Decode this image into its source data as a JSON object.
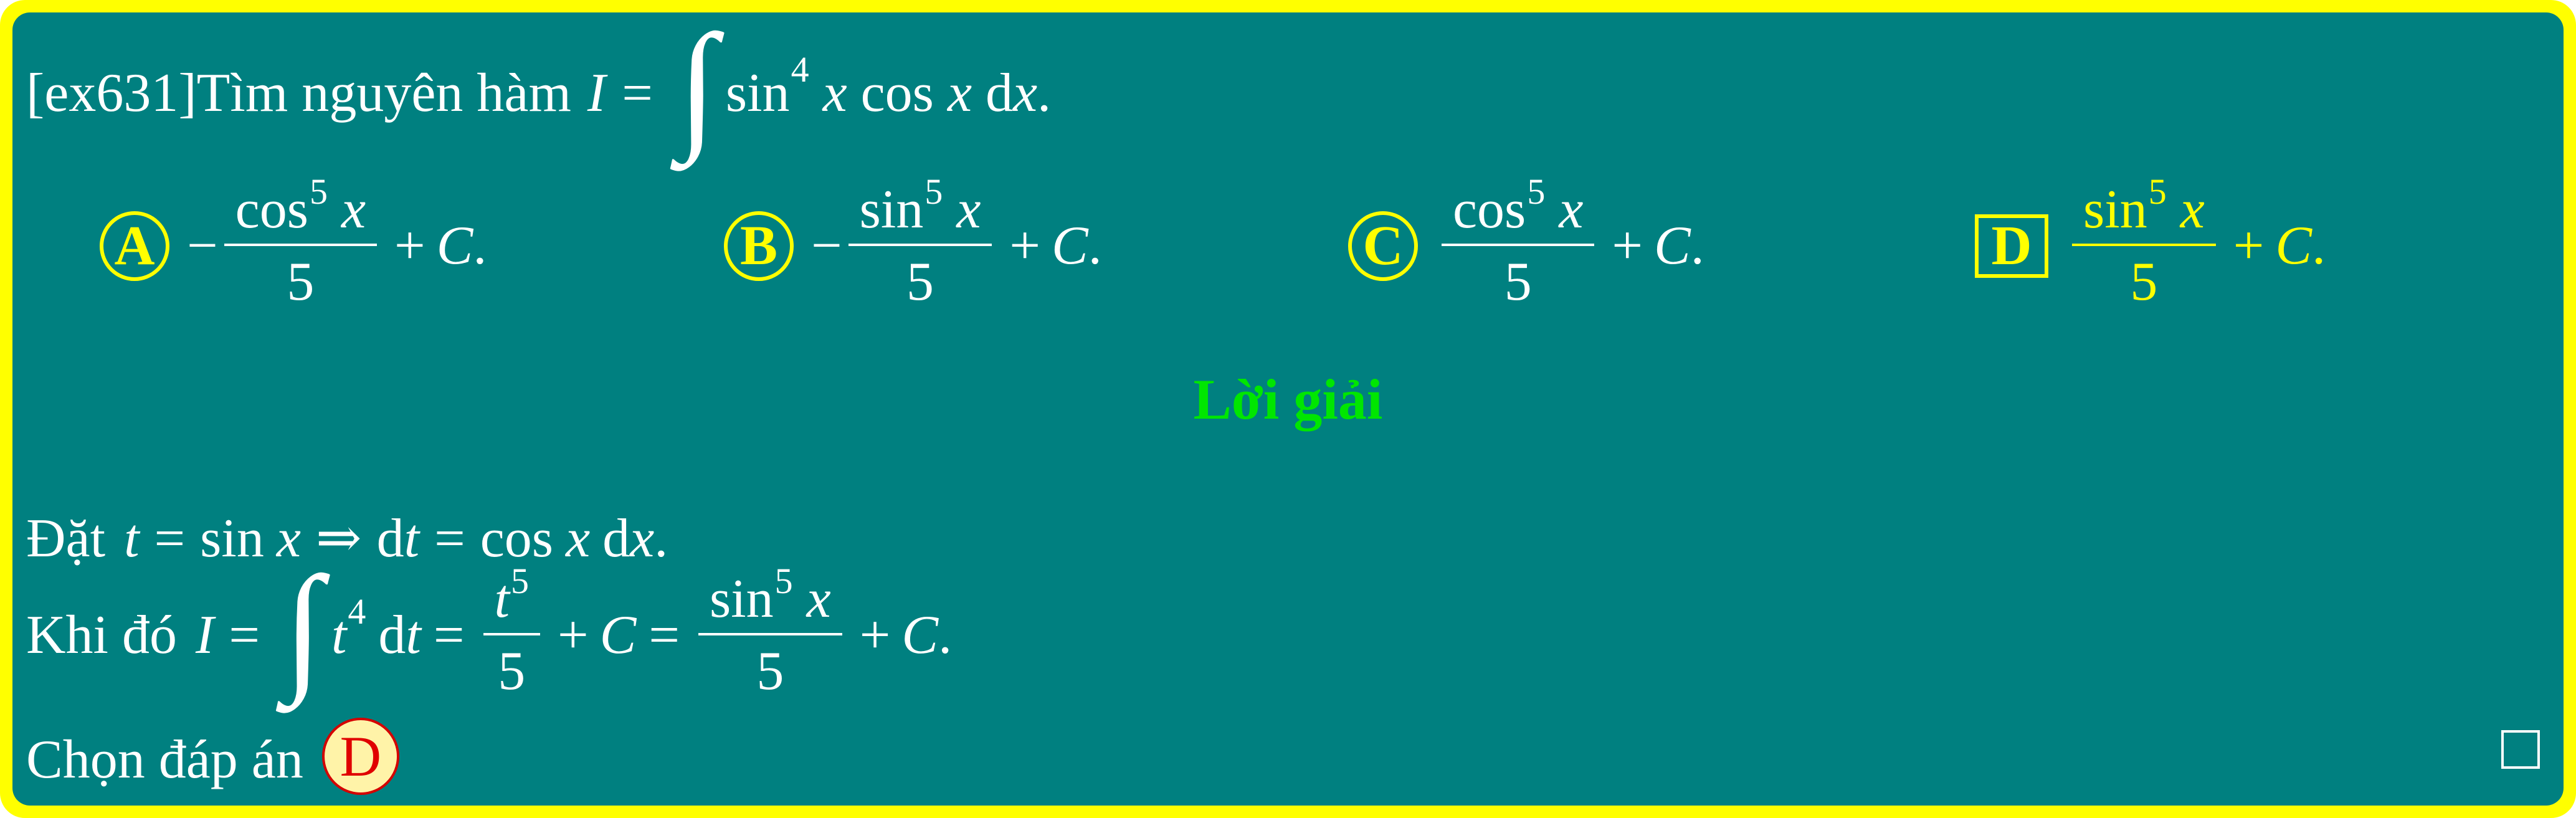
{
  "question": {
    "id_tag": "[ex631]",
    "prompt": "Tìm nguyên hàm",
    "var_I": "I",
    "equals": "=",
    "integral_sign": "∫",
    "func_sin": "sin",
    "power_4": "4",
    "var_x": "x",
    "func_cos": "cos",
    "d": "d",
    "end_period": "."
  },
  "options": [
    {
      "letter": "A",
      "sign": "−",
      "num_func": "cos",
      "num_pow": "5",
      "num_var": "x",
      "den": "5",
      "tail_plus": "+",
      "tail_C": "C",
      "tail_dot": ".",
      "marker": "circle",
      "selected": false
    },
    {
      "letter": "B",
      "sign": "−",
      "num_func": "sin",
      "num_pow": "5",
      "num_var": "x",
      "den": "5",
      "tail_plus": "+",
      "tail_C": "C",
      "tail_dot": ".",
      "marker": "circle",
      "selected": false
    },
    {
      "letter": "C",
      "sign": "",
      "num_func": "cos",
      "num_pow": "5",
      "num_var": "x",
      "den": "5",
      "tail_plus": "+",
      "tail_C": "C",
      "tail_dot": ".",
      "marker": "circle",
      "selected": false
    },
    {
      "letter": "D",
      "sign": "",
      "num_func": "sin",
      "num_pow": "5",
      "num_var": "x",
      "den": "5",
      "tail_plus": "+",
      "tail_C": "C",
      "tail_dot": ".",
      "marker": "square",
      "selected": true
    }
  ],
  "solution": {
    "heading": "Lời giải",
    "line1": {
      "prefix": "Đặt",
      "t": "t",
      "eq": "=",
      "sin": "sin",
      "x": "x",
      "implies": "⇒",
      "d": "d",
      "cos": "cos",
      "dot": "."
    },
    "line2": {
      "prefix": "Khi đó",
      "I": "I",
      "eq": "=",
      "integral": "∫",
      "t": "t",
      "pow4": "4",
      "d": "d",
      "frac1_num_var": "t",
      "frac1_num_pow": "5",
      "frac1_den": "5",
      "plus": "+",
      "C": "C",
      "frac2_func": "sin",
      "frac2_pow": "5",
      "frac2_var": "x",
      "frac2_den": "5",
      "dot": "."
    },
    "line3": {
      "prefix": "Chọn đáp án",
      "answer": "D"
    }
  },
  "colors": {
    "frame": "#ffff00",
    "background": "#008080",
    "text": "#ffffff",
    "correct_option": "#ffff00",
    "heading": "#00e600",
    "answer_badge_fill": "#fff3a8",
    "answer_badge_text": "#e00000"
  }
}
